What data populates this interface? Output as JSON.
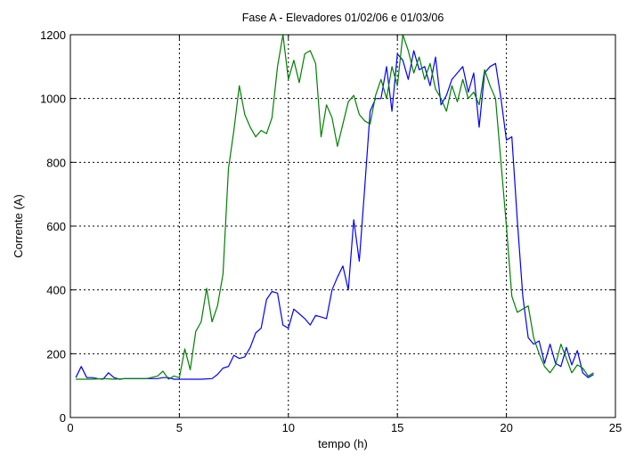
{
  "chart_data": {
    "type": "line",
    "title": "Fase A - Elevadores 01/02/06 e 01/03/06",
    "xlabel": "tempo (h)",
    "ylabel": "Corrente (A)",
    "xlim": [
      0,
      25
    ],
    "ylim": [
      0,
      1200
    ],
    "xticks": [
      0,
      5,
      10,
      15,
      20,
      25
    ],
    "yticks": [
      0,
      200,
      400,
      600,
      800,
      1000,
      1200
    ],
    "grid": true,
    "series": [
      {
        "color": "#0000ff",
        "x": [
          0.25,
          0.5,
          0.75,
          1.0,
          1.25,
          1.5,
          1.75,
          2.0,
          2.25,
          2.5,
          3.0,
          3.5,
          4.0,
          4.25,
          4.5,
          4.75,
          5.0,
          5.5,
          6.0,
          6.5,
          6.75,
          7.0,
          7.25,
          7.5,
          7.75,
          8.0,
          8.25,
          8.5,
          8.75,
          9.0,
          9.25,
          9.5,
          9.75,
          10.0,
          10.25,
          10.5,
          10.75,
          11.0,
          11.25,
          11.5,
          11.75,
          12.0,
          12.25,
          12.5,
          12.75,
          13.0,
          13.25,
          13.5,
          13.75,
          14.0,
          14.25,
          14.5,
          14.75,
          15.0,
          15.25,
          15.5,
          15.75,
          16.0,
          16.25,
          16.5,
          16.75,
          17.0,
          17.25,
          17.5,
          17.75,
          18.0,
          18.25,
          18.5,
          18.75,
          19.0,
          19.25,
          19.5,
          19.75,
          20.0,
          20.25,
          20.5,
          20.75,
          21.0,
          21.25,
          21.5,
          21.75,
          22.0,
          22.25,
          22.5,
          22.75,
          23.0,
          23.25,
          23.5,
          23.75,
          24.0
        ],
        "values": [
          125,
          160,
          125,
          125,
          122,
          120,
          140,
          125,
          120,
          122,
          122,
          122,
          122,
          125,
          125,
          120,
          120,
          120,
          120,
          122,
          135,
          155,
          160,
          195,
          185,
          190,
          220,
          265,
          280,
          370,
          395,
          390,
          290,
          280,
          340,
          325,
          310,
          290,
          320,
          315,
          310,
          400,
          440,
          475,
          400,
          620,
          490,
          720,
          960,
          1000,
          1000,
          1100,
          960,
          1140,
          1120,
          1060,
          1150,
          1090,
          1100,
          1040,
          1130,
          980,
          1010,
          1060,
          1080,
          1100,
          1020,
          1080,
          910,
          1080,
          1100,
          1110,
          1000,
          870,
          880,
          620,
          380,
          250,
          230,
          240,
          170,
          230,
          170,
          160,
          220,
          165,
          210,
          140,
          125,
          135
        ]
      },
      {
        "color": "#008000",
        "x": [
          0.25,
          0.5,
          1.0,
          1.5,
          2.0,
          2.5,
          3.0,
          3.5,
          4.0,
          4.25,
          4.5,
          4.75,
          5.0,
          5.25,
          5.5,
          5.75,
          6.0,
          6.25,
          6.5,
          6.75,
          7.0,
          7.25,
          7.5,
          7.75,
          8.0,
          8.25,
          8.5,
          8.75,
          9.0,
          9.25,
          9.5,
          9.75,
          10.0,
          10.25,
          10.5,
          10.75,
          11.0,
          11.25,
          11.5,
          11.75,
          12.0,
          12.25,
          12.5,
          12.75,
          13.0,
          13.25,
          13.5,
          13.75,
          14.0,
          14.25,
          14.5,
          14.75,
          15.0,
          15.25,
          15.5,
          15.75,
          16.0,
          16.25,
          16.5,
          16.75,
          17.0,
          17.25,
          17.5,
          17.75,
          18.0,
          18.25,
          18.5,
          18.75,
          19.0,
          19.25,
          19.5,
          19.75,
          20.0,
          20.25,
          20.5,
          20.75,
          21.0,
          21.25,
          21.5,
          21.75,
          22.0,
          22.25,
          22.5,
          22.75,
          23.0,
          23.25,
          23.5,
          23.75,
          24.0
        ],
        "values": [
          120,
          120,
          120,
          122,
          120,
          122,
          122,
          122,
          130,
          145,
          120,
          130,
          125,
          215,
          150,
          270,
          300,
          405,
          300,
          350,
          450,
          780,
          900,
          1040,
          950,
          910,
          880,
          900,
          890,
          940,
          1100,
          1200,
          1060,
          1120,
          1050,
          1140,
          1150,
          1110,
          880,
          980,
          940,
          850,
          920,
          990,
          1010,
          950,
          930,
          920,
          1010,
          1060,
          1000,
          1100,
          1040,
          1200,
          1150,
          1080,
          1130,
          1060,
          1110,
          1030,
          1000,
          960,
          1040,
          990,
          1060,
          1000,
          1020,
          980,
          1090,
          1040,
          1000,
          800,
          600,
          380,
          330,
          340,
          350,
          250,
          200,
          160,
          140,
          165,
          230,
          185,
          140,
          165,
          155,
          130,
          140
        ]
      }
    ]
  }
}
